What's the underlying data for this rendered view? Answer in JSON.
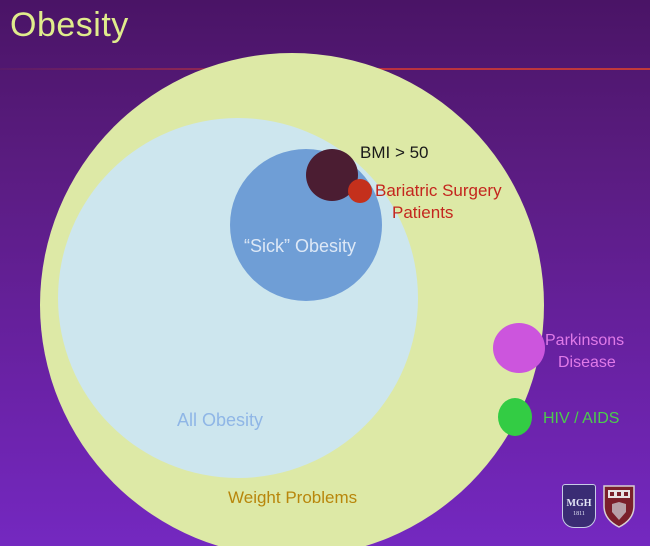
{
  "slide": {
    "title": "Obesity"
  },
  "diagram": {
    "labels": {
      "weight_problems": "Weight Problems",
      "all_obesity": "All Obesity",
      "sick_obesity": "“Sick” Obesity",
      "bmi_over_50": "BMI > 50",
      "bariatric_line1": "Bariatric Surgery",
      "bariatric_line2": "Patients",
      "parkinsons_line1": "Parkinsons",
      "parkinsons_line2": "Disease",
      "hiv_aids": "HIV / AIDS"
    },
    "colors": {
      "weight_problems": "#dde9a6",
      "all_obesity": "#cde6ee",
      "sick_obesity": "#6f9ed6",
      "bmi_over_50": "#4b1d32",
      "bariatric_surgery": "#c4301c",
      "parkinsons": "#cc55dd",
      "hiv_aids": "#33cc44"
    }
  },
  "logos": {
    "mgh": "MGH",
    "mgh_year": "1811"
  }
}
